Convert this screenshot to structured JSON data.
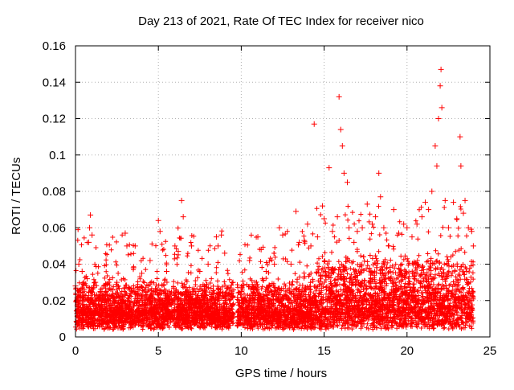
{
  "chart_data": {
    "type": "scatter",
    "title": "Day 213 of 2021, Rate Of TEC Index for receiver nico",
    "xlabel": "GPS time / hours",
    "ylabel": "ROTI / TECUs",
    "xlim": [
      0,
      25
    ],
    "ylim": [
      0,
      0.16
    ],
    "xticks": [
      0,
      5,
      10,
      15,
      20,
      25
    ],
    "xtick_labels": [
      "0",
      "5",
      "10",
      "15",
      "20",
      "25"
    ],
    "yticks": [
      0,
      0.02,
      0.04,
      0.06,
      0.08,
      0.1,
      0.12,
      0.14,
      0.16
    ],
    "ytick_labels": [
      "0",
      "0.02",
      "0.04",
      "0.06",
      "0.08",
      "0.1",
      "0.12",
      "0.14",
      "0.16"
    ],
    "grid": true,
    "marker": "+",
    "color": "#ff0000",
    "series": [
      {
        "points": [
          [
            0.0,
            0.028
          ],
          [
            0.2,
            0.04
          ],
          [
            0.4,
            0.036
          ],
          [
            0.5,
            0.03
          ],
          [
            0.7,
            0.032
          ],
          [
            0.8,
            0.052
          ],
          [
            0.85,
            0.06
          ],
          [
            0.9,
            0.067
          ],
          [
            1.0,
            0.056
          ],
          [
            1.2,
            0.03
          ],
          [
            1.5,
            0.025
          ],
          [
            2.0,
            0.03
          ],
          [
            2.5,
            0.03
          ],
          [
            3.0,
            0.057
          ],
          [
            3.1,
            0.05
          ],
          [
            3.5,
            0.038
          ],
          [
            3.6,
            0.05
          ],
          [
            4.0,
            0.035
          ],
          [
            4.5,
            0.042
          ],
          [
            5.0,
            0.064
          ],
          [
            5.1,
            0.058
          ],
          [
            5.5,
            0.036
          ],
          [
            6.0,
            0.05
          ],
          [
            6.2,
            0.047
          ],
          [
            6.4,
            0.075
          ],
          [
            6.5,
            0.066
          ],
          [
            7.0,
            0.05
          ],
          [
            7.5,
            0.036
          ],
          [
            8.0,
            0.04
          ],
          [
            8.5,
            0.055
          ],
          [
            8.6,
            0.05
          ],
          [
            8.8,
            0.056
          ],
          [
            9.0,
            0.046
          ],
          [
            9.5,
            0.03
          ],
          [
            10.0,
            0.025
          ],
          [
            10.5,
            0.042
          ],
          [
            11.0,
            0.055
          ],
          [
            11.2,
            0.048
          ],
          [
            11.5,
            0.036
          ],
          [
            12.0,
            0.04
          ],
          [
            12.3,
            0.06
          ],
          [
            12.5,
            0.056
          ],
          [
            13.0,
            0.04
          ],
          [
            13.3,
            0.069
          ],
          [
            13.5,
            0.052
          ],
          [
            13.8,
            0.053
          ],
          [
            14.0,
            0.062
          ],
          [
            14.2,
            0.05
          ],
          [
            14.4,
            0.117
          ],
          [
            14.6,
            0.055
          ],
          [
            14.9,
            0.072
          ],
          [
            15.0,
            0.065
          ],
          [
            15.3,
            0.093
          ],
          [
            15.5,
            0.058
          ],
          [
            15.8,
            0.066
          ],
          [
            15.9,
            0.132
          ],
          [
            16.0,
            0.114
          ],
          [
            16.1,
            0.105
          ],
          [
            16.2,
            0.09
          ],
          [
            16.4,
            0.085
          ],
          [
            16.5,
            0.06
          ],
          [
            16.8,
            0.052
          ],
          [
            17.0,
            0.058
          ],
          [
            17.3,
            0.06
          ],
          [
            17.6,
            0.073
          ],
          [
            17.9,
            0.062
          ],
          [
            18.1,
            0.066
          ],
          [
            18.3,
            0.09
          ],
          [
            18.4,
            0.077
          ],
          [
            18.6,
            0.06
          ],
          [
            18.9,
            0.05
          ],
          [
            19.2,
            0.07
          ],
          [
            19.5,
            0.057
          ],
          [
            19.8,
            0.062
          ],
          [
            20.0,
            0.06
          ],
          [
            20.3,
            0.055
          ],
          [
            20.6,
            0.062
          ],
          [
            20.9,
            0.066
          ],
          [
            21.1,
            0.074
          ],
          [
            21.3,
            0.07
          ],
          [
            21.5,
            0.08
          ],
          [
            21.7,
            0.105
          ],
          [
            21.8,
            0.094
          ],
          [
            21.9,
            0.12
          ],
          [
            22.0,
            0.138
          ],
          [
            22.05,
            0.147
          ],
          [
            22.1,
            0.126
          ],
          [
            22.3,
            0.075
          ],
          [
            22.5,
            0.06
          ],
          [
            22.8,
            0.074
          ],
          [
            23.0,
            0.065
          ],
          [
            23.2,
            0.11
          ],
          [
            23.25,
            0.094
          ],
          [
            23.4,
            0.068
          ],
          [
            23.5,
            0.075
          ],
          [
            23.7,
            0.06
          ],
          [
            23.9,
            0.058
          ],
          [
            24.0,
            0.05
          ]
        ]
      }
    ]
  }
}
